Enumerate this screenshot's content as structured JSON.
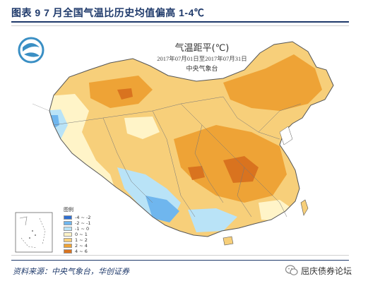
{
  "figure": {
    "title": "图表 9   7 月全国气温比历史均值偏高 1-4℃"
  },
  "map": {
    "title": "气温距平(℃)",
    "date_range": "2017年07月01日至2017年07月31日",
    "issuer": "中央气象台",
    "legend": {
      "title": "图例",
      "items": [
        {
          "label": "-4 ~ -2",
          "color": "#2f6fd0"
        },
        {
          "label": "-2 ~ -1",
          "color": "#6fb6ee"
        },
        {
          "label": "-1 ~ 0",
          "color": "#b9e3f7"
        },
        {
          "label": "0 ~ 1",
          "color": "#fff4c8"
        },
        {
          "label": "1 ~ 2",
          "color": "#f7cf7a"
        },
        {
          "label": "2 ~ 4",
          "color": "#eea336"
        },
        {
          "label": "4 ~ 6",
          "color": "#d9731f"
        }
      ]
    },
    "colors": {
      "sea": "#ffffff",
      "logo": "#3a8fc4"
    }
  },
  "footer": {
    "source": "资料来源：中央气象台，华创证券",
    "wechat_label": "屈庆债券论坛"
  }
}
